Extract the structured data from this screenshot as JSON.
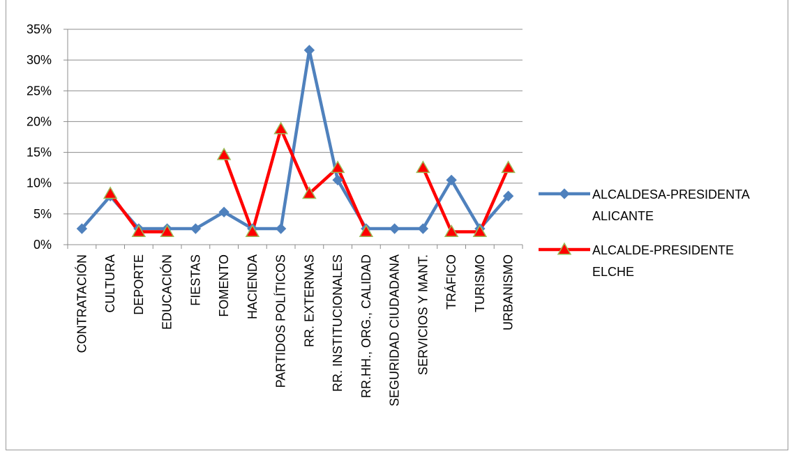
{
  "chart_data": {
    "type": "line",
    "title": "",
    "xlabel": "",
    "ylabel": "",
    "ylim": [
      0,
      0.35
    ],
    "ytick_step": 0.05,
    "grid": true,
    "legend_position": "right",
    "categories": [
      "CONTRATACIÓN",
      "CULTURA",
      "DEPORTE",
      "EDUCACIÓN",
      "FIESTAS",
      "FOMENTO",
      "HACIENDA",
      "PARTIDOS POLÍTICOS",
      "RR. EXTERNAS",
      "RR. INSTITUCIONALES",
      "RR.HH., ORG., CALIDAD",
      "SEGURIDAD CIUDADANA",
      "SERVICIOS Y MANT.",
      "TRÁFICO",
      "TURISMO",
      "URBANISMO"
    ],
    "series": [
      {
        "name_lines": [
          "ALCALDESA-PRESIDENTA",
          "ALICANTE"
        ],
        "color": "#4f81bd",
        "marker": "diamond",
        "values": [
          0.026,
          0.079,
          0.026,
          0.026,
          0.026,
          0.053,
          0.026,
          0.026,
          0.316,
          0.105,
          0.026,
          0.026,
          0.026,
          0.105,
          0.026,
          0.079
        ]
      },
      {
        "name_lines": [
          "ALCALDE-PRESIDENTE",
          "ELCHE"
        ],
        "color": "#ff0000",
        "marker": "triangle",
        "values": [
          null,
          0.083,
          0.021,
          0.021,
          null,
          0.146,
          0.021,
          0.188,
          0.083,
          0.125,
          0.021,
          null,
          0.125,
          0.021,
          0.021,
          0.125
        ]
      }
    ]
  }
}
